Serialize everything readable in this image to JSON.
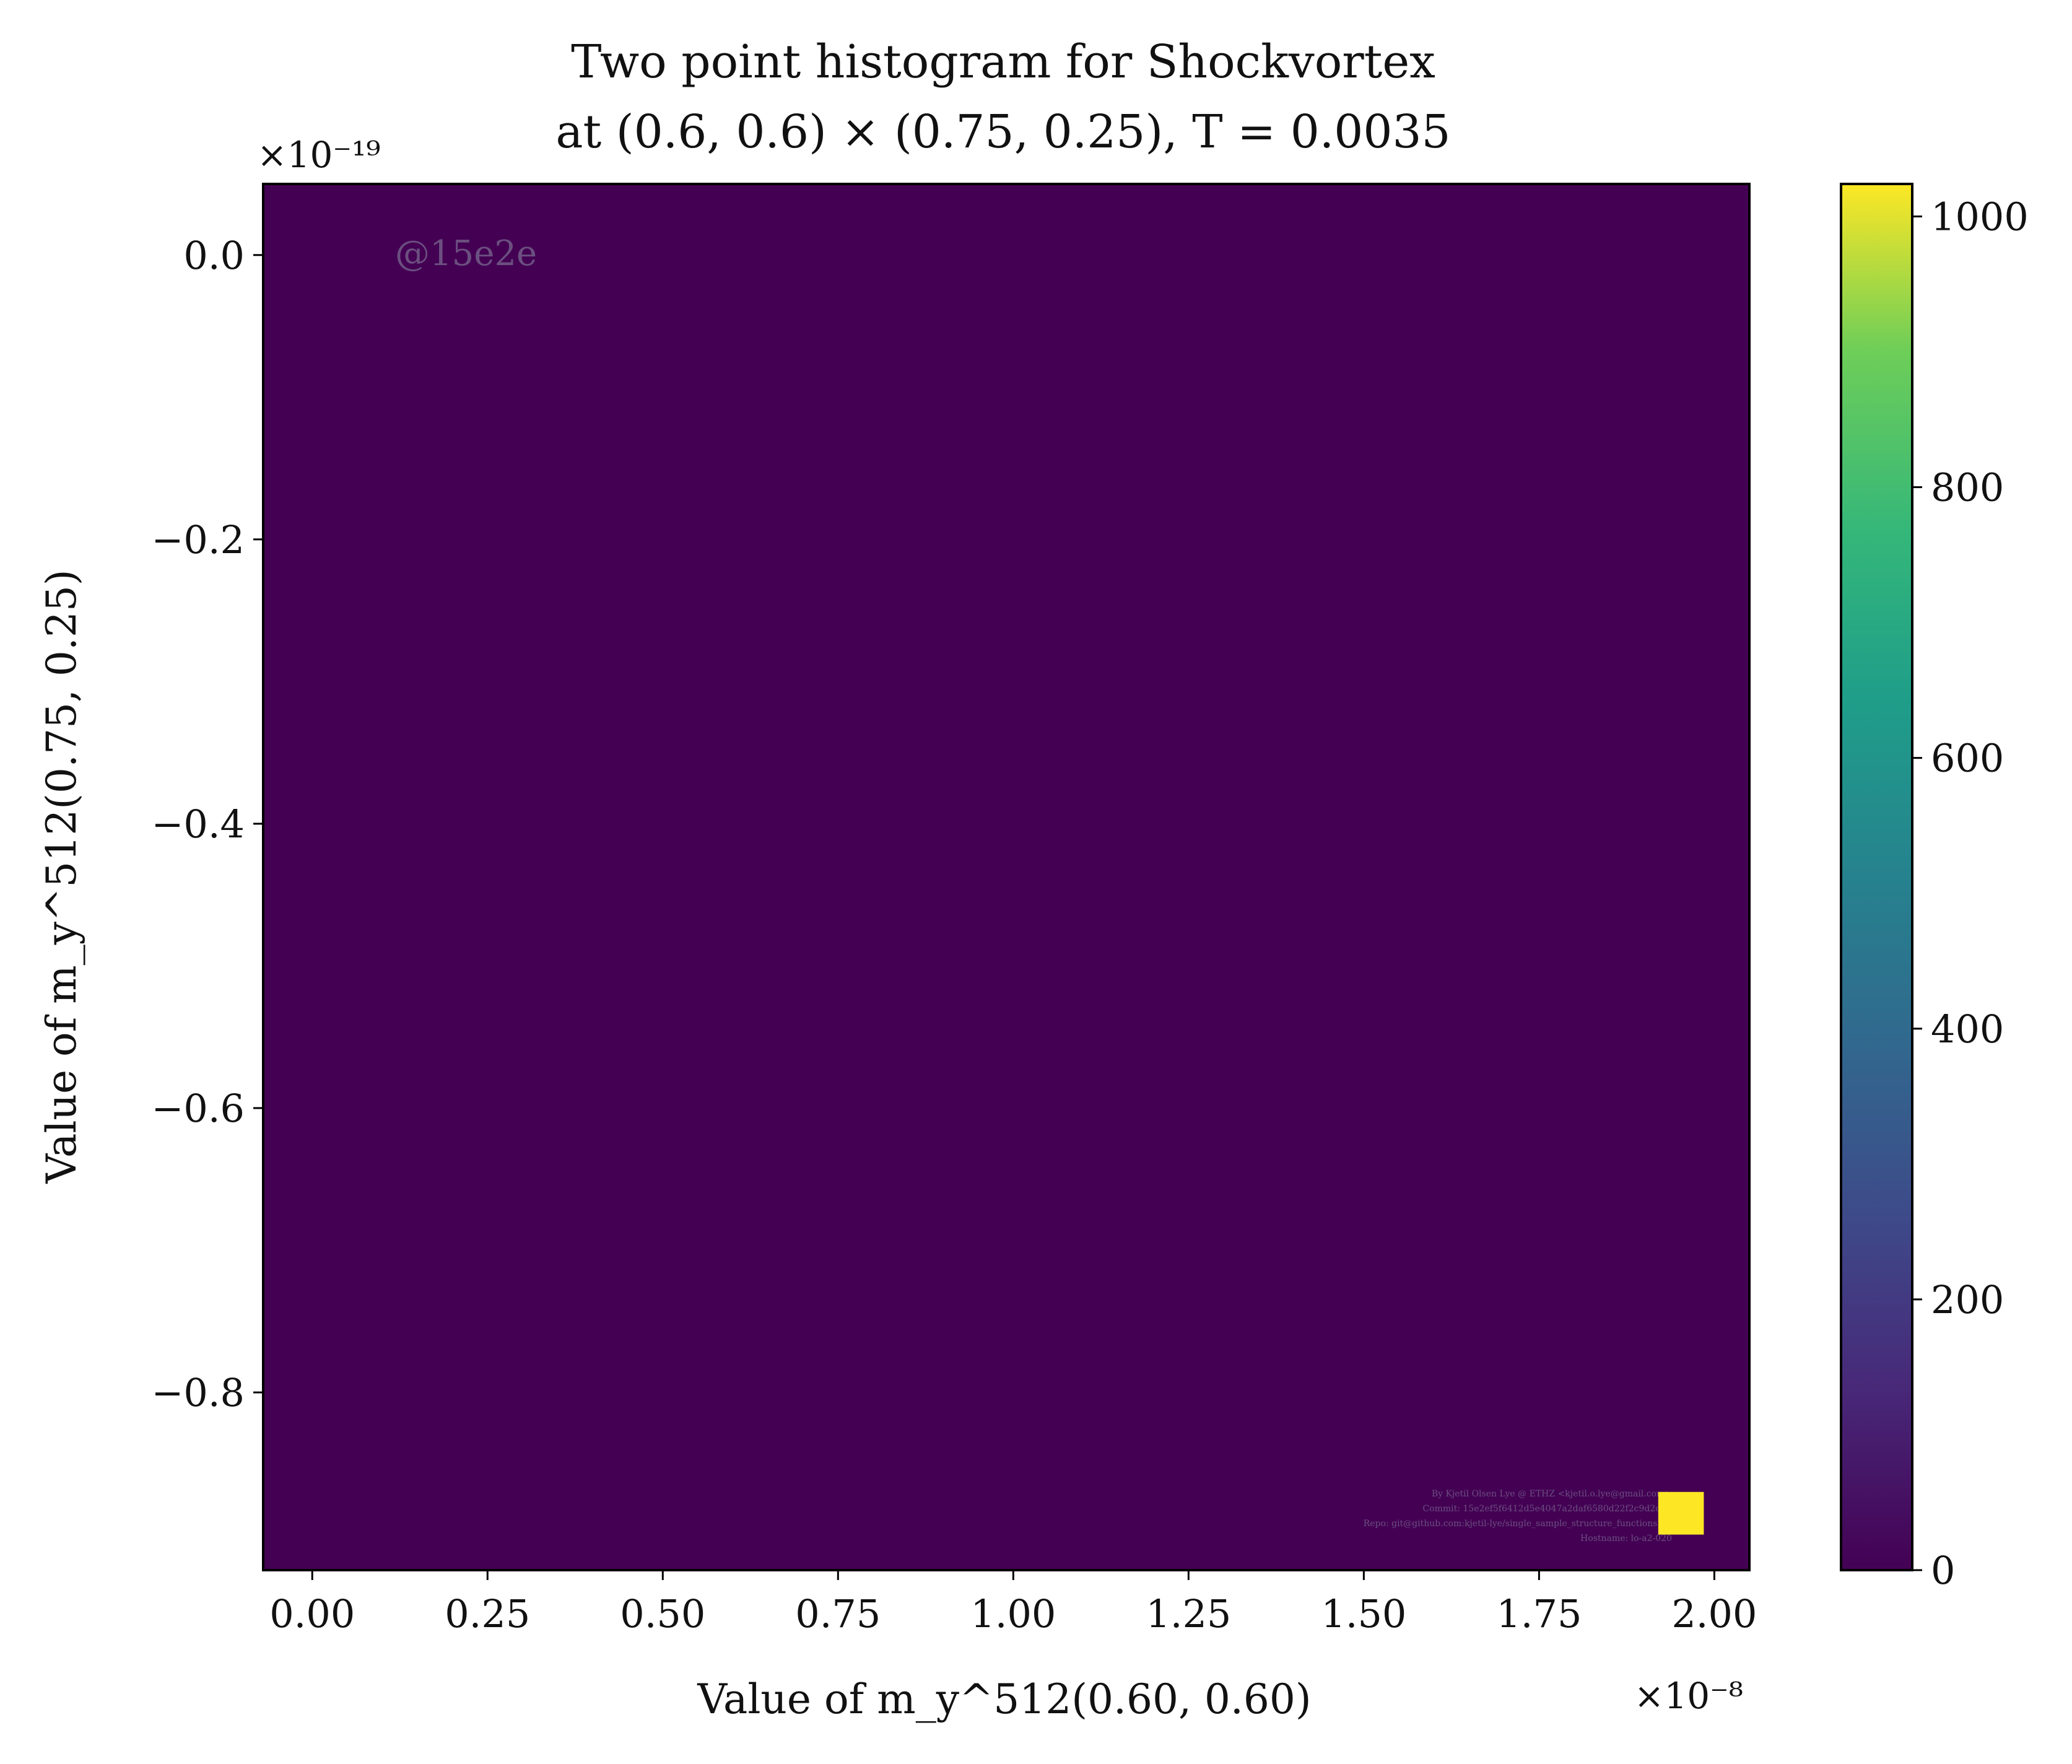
{
  "chart_data": {
    "type": "heatmap",
    "title": {
      "line1": "Two point histogram for Shockvortex",
      "line2": "at (0.6, 0.6) × (0.75, 0.25), T = 0.0035"
    },
    "xlabel": "Value of m_y^512(0.60, 0.60)",
    "ylabel": "Value of m_y^512(0.75, 0.25)",
    "x_multiplier": "×10⁻⁸",
    "y_multiplier": "×10⁻¹⁹",
    "xlim": [
      -0.07,
      2.05
    ],
    "ylim": [
      -0.925,
      0.05
    ],
    "x_ticks": [
      {
        "value": 0.0,
        "label": "0.00"
      },
      {
        "value": 0.25,
        "label": "0.25"
      },
      {
        "value": 0.5,
        "label": "0.50"
      },
      {
        "value": 0.75,
        "label": "0.75"
      },
      {
        "value": 1.0,
        "label": "1.00"
      },
      {
        "value": 1.25,
        "label": "1.25"
      },
      {
        "value": 1.5,
        "label": "1.50"
      },
      {
        "value": 1.75,
        "label": "1.75"
      },
      {
        "value": 2.0,
        "label": "2.00"
      }
    ],
    "y_ticks": [
      {
        "value": 0.0,
        "label": "0.0"
      },
      {
        "value": -0.2,
        "label": "−0.2"
      },
      {
        "value": -0.4,
        "label": "−0.4"
      },
      {
        "value": -0.6,
        "label": "−0.6"
      },
      {
        "value": -0.8,
        "label": "−0.8"
      }
    ],
    "background_count": 0,
    "cells": [
      {
        "x0": 1.92,
        "x1": 1.985,
        "y0": -0.9,
        "y1": -0.87,
        "count": 1024
      }
    ],
    "colorbar": {
      "colormap": "viridis",
      "min": 0,
      "max": 1024,
      "ticks": [
        {
          "value": 0,
          "label": "0"
        },
        {
          "value": 200,
          "label": "200"
        },
        {
          "value": 400,
          "label": "400"
        },
        {
          "value": 600,
          "label": "600"
        },
        {
          "value": 800,
          "label": "800"
        },
        {
          "value": 1000,
          "label": "1000"
        }
      ]
    },
    "grid": false
  },
  "watermark": "@15e2e",
  "footer_lines": [
    "By Kjetil Olsen Lye @ ETHZ <kjetil.o.lye@gmail.com>",
    "Commit: 15e2ef5f6412d5e4047a2daf6580d22f2c9d2d83",
    "Repo: git@github.com:kjetil-lye/single_sample_structure_functions.git",
    "Hostname: lo-a2-020"
  ]
}
